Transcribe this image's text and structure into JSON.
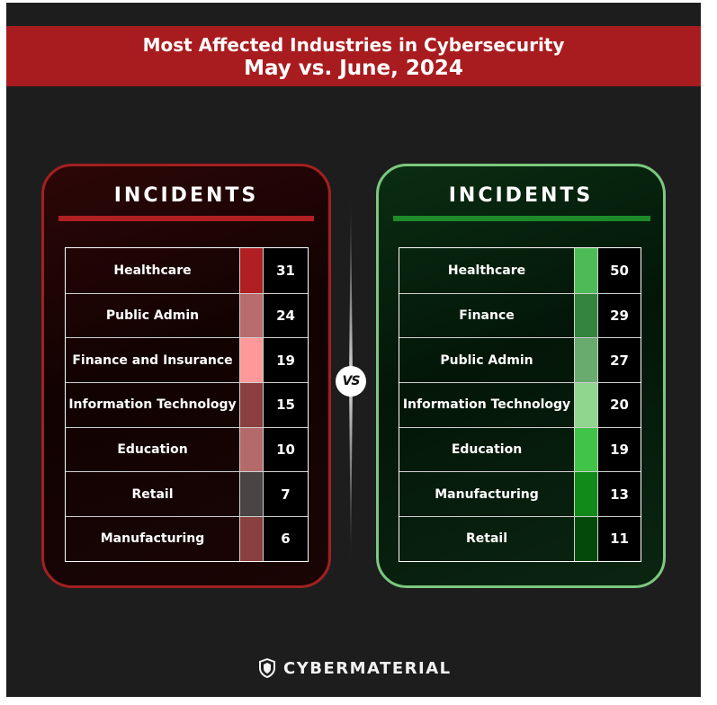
{
  "header": {
    "title_line1": "Most Affected Industries in Cybersecurity",
    "title_line2": "May vs. June, 2024"
  },
  "vs_label": "VS",
  "brand": {
    "name": "CYBERMATERIAL",
    "icon": "shield-icon"
  },
  "chart_data": [
    {
      "type": "table",
      "title": "INCIDENTS",
      "accent_color": "#a3201f",
      "categories": [
        "Healthcare",
        "Public Admin",
        "Finance and Insurance",
        "Information Technology",
        "Education",
        "Retail",
        "Manufacturing"
      ],
      "values": [
        31,
        24,
        19,
        15,
        10,
        7,
        6
      ],
      "swatch_colors": [
        "#b01f22",
        "#b96c6c",
        "#ff9999",
        "#8b3f3f",
        "#b56a6a",
        "#4a4444",
        "#8b4040"
      ]
    },
    {
      "type": "table",
      "title": "INCIDENTS",
      "accent_color": "#7cc87e",
      "categories": [
        "Healthcare",
        "Finance",
        "Public Admin",
        "Information Technology",
        "Education",
        "Manufacturing",
        "Retail"
      ],
      "values": [
        50,
        29,
        27,
        20,
        19,
        13,
        11
      ],
      "swatch_colors": [
        "#4cbb55",
        "#34843d",
        "#69ab6e",
        "#8fd68f",
        "#3fc447",
        "#118a1a",
        "#034a0a"
      ]
    }
  ]
}
